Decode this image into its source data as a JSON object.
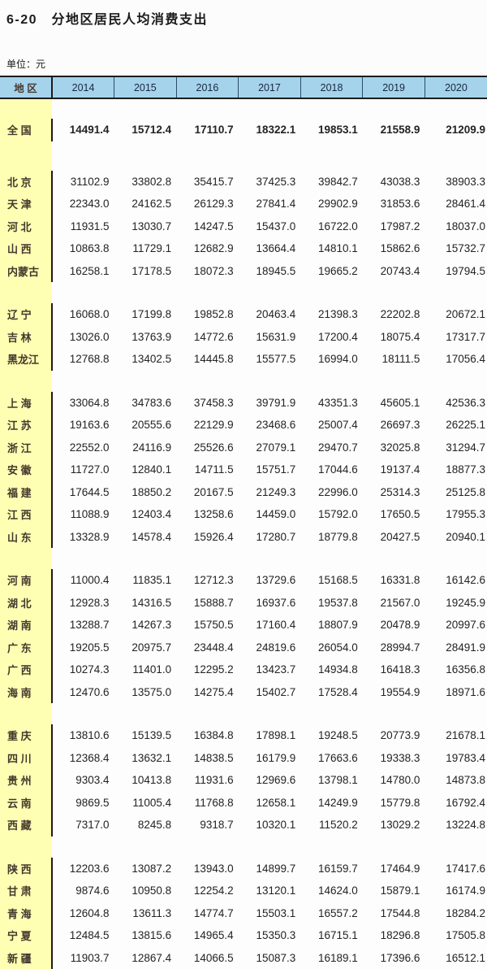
{
  "title": "6-20　分地区居民人均消费支出",
  "unit_label": "单位：元",
  "colors": {
    "header_bg": "#a6d3ec",
    "header_divider": "#2a4c6e",
    "header_text": "#16283f",
    "border_dark": "#1c1c1c",
    "region_col_bg": "#ffffb3",
    "region_text": "#45382d",
    "value_text": "#232323"
  },
  "table": {
    "region_header": "地 区",
    "years": [
      "2014",
      "2015",
      "2016",
      "2017",
      "2018",
      "2019",
      "2020"
    ],
    "national": {
      "region": "全 国",
      "values": [
        "14491.4",
        "15712.4",
        "17110.7",
        "18322.1",
        "19853.1",
        "21558.9",
        "21209.9"
      ]
    },
    "groups": [
      {
        "rows": [
          {
            "region": "北 京",
            "values": [
              "31102.9",
              "33802.8",
              "35415.7",
              "37425.3",
              "39842.7",
              "43038.3",
              "38903.3"
            ]
          },
          {
            "region": "天 津",
            "values": [
              "22343.0",
              "24162.5",
              "26129.3",
              "27841.4",
              "29902.9",
              "31853.6",
              "28461.4"
            ]
          },
          {
            "region": "河 北",
            "values": [
              "11931.5",
              "13030.7",
              "14247.5",
              "15437.0",
              "16722.0",
              "17987.2",
              "18037.0"
            ]
          },
          {
            "region": "山 西",
            "values": [
              "10863.8",
              "11729.1",
              "12682.9",
              "13664.4",
              "14810.1",
              "15862.6",
              "15732.7"
            ]
          },
          {
            "region": "内蒙古",
            "values": [
              "16258.1",
              "17178.5",
              "18072.3",
              "18945.5",
              "19665.2",
              "20743.4",
              "19794.5"
            ]
          }
        ]
      },
      {
        "rows": [
          {
            "region": "辽 宁",
            "values": [
              "16068.0",
              "17199.8",
              "19852.8",
              "20463.4",
              "21398.3",
              "22202.8",
              "20672.1"
            ]
          },
          {
            "region": "吉 林",
            "values": [
              "13026.0",
              "13763.9",
              "14772.6",
              "15631.9",
              "17200.4",
              "18075.4",
              "17317.7"
            ]
          },
          {
            "region": "黑龙江",
            "values": [
              "12768.8",
              "13402.5",
              "14445.8",
              "15577.5",
              "16994.0",
              "18111.5",
              "17056.4"
            ]
          }
        ]
      },
      {
        "rows": [
          {
            "region": "上 海",
            "values": [
              "33064.8",
              "34783.6",
              "37458.3",
              "39791.9",
              "43351.3",
              "45605.1",
              "42536.3"
            ]
          },
          {
            "region": "江 苏",
            "values": [
              "19163.6",
              "20555.6",
              "22129.9",
              "23468.6",
              "25007.4",
              "26697.3",
              "26225.1"
            ]
          },
          {
            "region": "浙 江",
            "values": [
              "22552.0",
              "24116.9",
              "25526.6",
              "27079.1",
              "29470.7",
              "32025.8",
              "31294.7"
            ]
          },
          {
            "region": "安 徽",
            "values": [
              "11727.0",
              "12840.1",
              "14711.5",
              "15751.7",
              "17044.6",
              "19137.4",
              "18877.3"
            ]
          },
          {
            "region": "福 建",
            "values": [
              "17644.5",
              "18850.2",
              "20167.5",
              "21249.3",
              "22996.0",
              "25314.3",
              "25125.8"
            ]
          },
          {
            "region": "江 西",
            "values": [
              "11088.9",
              "12403.4",
              "13258.6",
              "14459.0",
              "15792.0",
              "17650.5",
              "17955.3"
            ]
          },
          {
            "region": "山 东",
            "values": [
              "13328.9",
              "14578.4",
              "15926.4",
              "17280.7",
              "18779.8",
              "20427.5",
              "20940.1"
            ]
          }
        ]
      },
      {
        "rows": [
          {
            "region": "河 南",
            "values": [
              "11000.4",
              "11835.1",
              "12712.3",
              "13729.6",
              "15168.5",
              "16331.8",
              "16142.6"
            ]
          },
          {
            "region": "湖 北",
            "values": [
              "12928.3",
              "14316.5",
              "15888.7",
              "16937.6",
              "19537.8",
              "21567.0",
              "19245.9"
            ]
          },
          {
            "region": "湖 南",
            "values": [
              "13288.7",
              "14267.3",
              "15750.5",
              "17160.4",
              "18807.9",
              "20478.9",
              "20997.6"
            ]
          },
          {
            "region": "广 东",
            "values": [
              "19205.5",
              "20975.7",
              "23448.4",
              "24819.6",
              "26054.0",
              "28994.7",
              "28491.9"
            ]
          },
          {
            "region": "广 西",
            "values": [
              "10274.3",
              "11401.0",
              "12295.2",
              "13423.7",
              "14934.8",
              "16418.3",
              "16356.8"
            ]
          },
          {
            "region": "海 南",
            "values": [
              "12470.6",
              "13575.0",
              "14275.4",
              "15402.7",
              "17528.4",
              "19554.9",
              "18971.6"
            ]
          }
        ]
      },
      {
        "rows": [
          {
            "region": "重 庆",
            "values": [
              "13810.6",
              "15139.5",
              "16384.8",
              "17898.1",
              "19248.5",
              "20773.9",
              "21678.1"
            ]
          },
          {
            "region": "四 川",
            "values": [
              "12368.4",
              "13632.1",
              "14838.5",
              "16179.9",
              "17663.6",
              "19338.3",
              "19783.4"
            ]
          },
          {
            "region": "贵 州",
            "values": [
              "9303.4",
              "10413.8",
              "11931.6",
              "12969.6",
              "13798.1",
              "14780.0",
              "14873.8"
            ]
          },
          {
            "region": "云 南",
            "values": [
              "9869.5",
              "11005.4",
              "11768.8",
              "12658.1",
              "14249.9",
              "15779.8",
              "16792.4"
            ]
          },
          {
            "region": "西 藏",
            "values": [
              "7317.0",
              "8245.8",
              "9318.7",
              "10320.1",
              "11520.2",
              "13029.2",
              "13224.8"
            ]
          }
        ]
      },
      {
        "rows": [
          {
            "region": "陕 西",
            "values": [
              "12203.6",
              "13087.2",
              "13943.0",
              "14899.7",
              "16159.7",
              "17464.9",
              "17417.6"
            ]
          },
          {
            "region": "甘 肃",
            "values": [
              "9874.6",
              "10950.8",
              "12254.2",
              "13120.1",
              "14624.0",
              "15879.1",
              "16174.9"
            ]
          },
          {
            "region": "青 海",
            "values": [
              "12604.8",
              "13611.3",
              "14774.7",
              "15503.1",
              "16557.2",
              "17544.8",
              "18284.2"
            ]
          },
          {
            "region": "宁 夏",
            "values": [
              "12484.5",
              "13815.6",
              "14965.4",
              "15350.3",
              "16715.1",
              "18296.8",
              "17505.8"
            ]
          },
          {
            "region": "新 疆",
            "values": [
              "11903.7",
              "12867.4",
              "14066.5",
              "15087.3",
              "16189.1",
              "17396.6",
              "16512.1"
            ]
          }
        ]
      }
    ]
  }
}
